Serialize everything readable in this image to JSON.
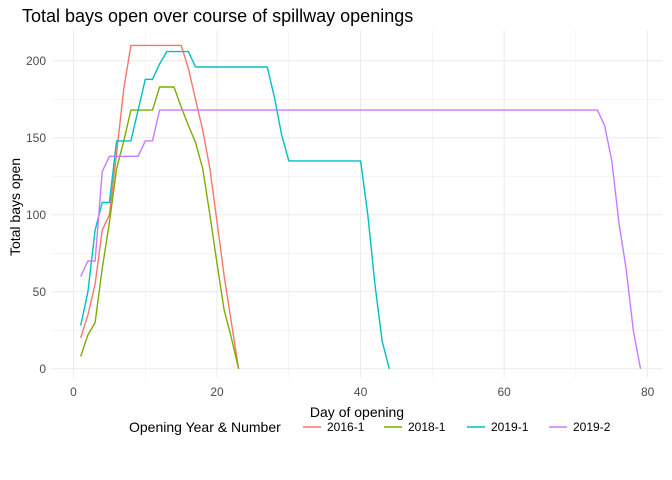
{
  "chart_data": {
    "type": "line",
    "title": "Total bays open over course of spillway openings",
    "xlabel": "Day of opening",
    "ylabel": "Total bays open",
    "xlim": [
      -3,
      82
    ],
    "ylim": [
      -6,
      220
    ],
    "x_ticks": [
      0,
      20,
      40,
      60,
      80
    ],
    "y_ticks": [
      0,
      50,
      100,
      150,
      200
    ],
    "grid": true,
    "legend_title": "Opening Year & Number",
    "legend_position": "bottom",
    "series": [
      {
        "name": "2016-1",
        "color": "#f8766d",
        "points": [
          [
            1,
            20
          ],
          [
            2,
            35
          ],
          [
            3,
            55
          ],
          [
            4,
            90
          ],
          [
            5,
            100
          ],
          [
            6,
            140
          ],
          [
            7,
            182
          ],
          [
            8,
            210
          ],
          [
            9,
            210
          ],
          [
            10,
            210
          ],
          [
            11,
            210
          ],
          [
            12,
            210
          ],
          [
            13,
            210
          ],
          [
            14,
            210
          ],
          [
            15,
            210
          ],
          [
            16,
            195
          ],
          [
            17,
            175
          ],
          [
            18,
            155
          ],
          [
            19,
            130
          ],
          [
            20,
            95
          ],
          [
            21,
            60
          ],
          [
            22,
            30
          ],
          [
            23,
            0
          ]
        ]
      },
      {
        "name": "2018-1",
        "color": "#7cae00",
        "points": [
          [
            1,
            8
          ],
          [
            2,
            22
          ],
          [
            3,
            30
          ],
          [
            4,
            65
          ],
          [
            5,
            95
          ],
          [
            6,
            130
          ],
          [
            7,
            148
          ],
          [
            8,
            168
          ],
          [
            9,
            168
          ],
          [
            10,
            168
          ],
          [
            11,
            168
          ],
          [
            12,
            183
          ],
          [
            13,
            183
          ],
          [
            14,
            183
          ],
          [
            15,
            170
          ],
          [
            16,
            158
          ],
          [
            17,
            147
          ],
          [
            18,
            130
          ],
          [
            19,
            100
          ],
          [
            20,
            68
          ],
          [
            21,
            38
          ],
          [
            22,
            20
          ],
          [
            23,
            0
          ]
        ]
      },
      {
        "name": "2019-1",
        "color": "#00bfc4",
        "points": [
          [
            1,
            28
          ],
          [
            2,
            50
          ],
          [
            3,
            90
          ],
          [
            4,
            108
          ],
          [
            5,
            108
          ],
          [
            6,
            148
          ],
          [
            7,
            148
          ],
          [
            8,
            148
          ],
          [
            9,
            168
          ],
          [
            10,
            188
          ],
          [
            11,
            188
          ],
          [
            12,
            198
          ],
          [
            13,
            206
          ],
          [
            14,
            206
          ],
          [
            15,
            206
          ],
          [
            16,
            206
          ],
          [
            17,
            196
          ],
          [
            18,
            196
          ],
          [
            19,
            196
          ],
          [
            20,
            196
          ],
          [
            21,
            196
          ],
          [
            22,
            196
          ],
          [
            23,
            196
          ],
          [
            24,
            196
          ],
          [
            25,
            196
          ],
          [
            26,
            196
          ],
          [
            27,
            196
          ],
          [
            28,
            176
          ],
          [
            29,
            152
          ],
          [
            30,
            135
          ],
          [
            31,
            135
          ],
          [
            32,
            135
          ],
          [
            33,
            135
          ],
          [
            34,
            135
          ],
          [
            35,
            135
          ],
          [
            36,
            135
          ],
          [
            37,
            135
          ],
          [
            38,
            135
          ],
          [
            39,
            135
          ],
          [
            40,
            135
          ],
          [
            41,
            100
          ],
          [
            42,
            55
          ],
          [
            43,
            18
          ],
          [
            44,
            0
          ]
        ]
      },
      {
        "name": "2019-2",
        "color": "#c77cff",
        "points": [
          [
            1,
            60
          ],
          [
            2,
            70
          ],
          [
            3,
            70
          ],
          [
            4,
            128
          ],
          [
            5,
            138
          ],
          [
            6,
            138
          ],
          [
            7,
            138
          ],
          [
            8,
            138
          ],
          [
            9,
            138
          ],
          [
            10,
            148
          ],
          [
            11,
            148
          ],
          [
            12,
            168
          ],
          [
            13,
            168
          ],
          [
            20,
            168
          ],
          [
            30,
            168
          ],
          [
            40,
            168
          ],
          [
            50,
            168
          ],
          [
            60,
            168
          ],
          [
            70,
            168
          ],
          [
            73,
            168
          ],
          [
            74,
            158
          ],
          [
            75,
            135
          ],
          [
            76,
            95
          ],
          [
            77,
            65
          ],
          [
            78,
            25
          ],
          [
            79,
            0
          ]
        ]
      }
    ]
  }
}
